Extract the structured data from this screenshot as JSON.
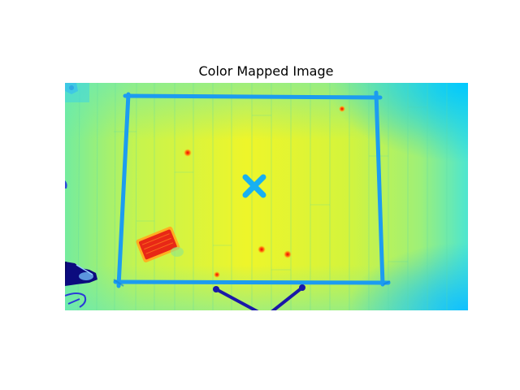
{
  "figure": {
    "title": "Color Mapped Image"
  },
  "image": {
    "colormap": "jet",
    "colors": {
      "floor_yellow": "#e6f52a",
      "floor_green": "#9af07a",
      "floor_cyan": "#4fe8c8",
      "tape_blue": "#1aa6ff",
      "hot_red": "#e0201c",
      "hot_orange": "#ff7a1a",
      "cold_navy": "#0b0b8a"
    }
  }
}
